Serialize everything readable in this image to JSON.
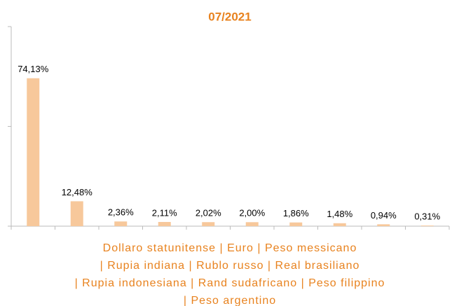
{
  "chart_data": {
    "type": "bar",
    "title": "07/2021",
    "categories": [
      null,
      null,
      null,
      null,
      null,
      null,
      null,
      null,
      null,
      null
    ],
    "values": [
      74.13,
      12.48,
      2.36,
      2.11,
      2.02,
      2.0,
      1.86,
      1.48,
      0.94,
      0.31
    ],
    "value_labels": [
      "74,13%",
      "12,48%",
      "2,36%",
      "2,11%",
      "2,02%",
      "2,00%",
      "1,86%",
      "1,48%",
      "0,94%",
      "0,31%"
    ],
    "color": "#f7c89b",
    "ylim": [
      0,
      100
    ],
    "yticks": [
      0,
      50,
      100
    ],
    "x_label": [
      "Dollaro statunitense | Euro | Peso messicano",
      "| Rupia indiana | Rublo russo | Real brasiliano",
      "| Rupia indonesiana | Rand sudafricano | Peso filippino",
      "| Peso argentino"
    ]
  }
}
